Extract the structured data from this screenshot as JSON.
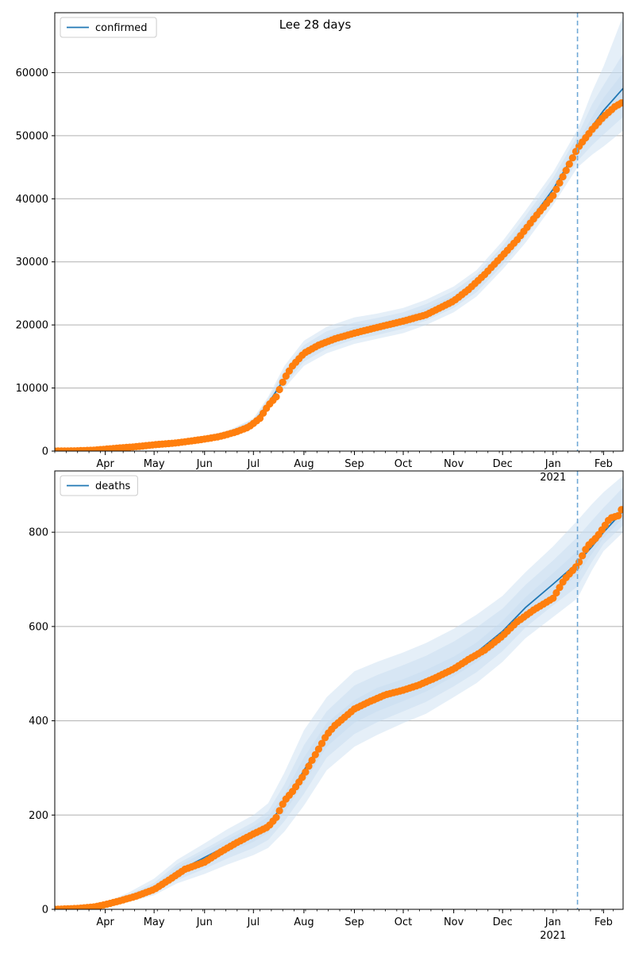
{
  "title": "Lee 28 days",
  "colors": {
    "model": "#1f77b4",
    "observed": "#ff7f0e",
    "band": "#c6dbef",
    "grid": "#b0b0b0",
    "cutoff": "#6fa8d6"
  },
  "chart_data": [
    {
      "type": "line",
      "legend": "confirmed",
      "legend_position": "top-left",
      "grid": "y",
      "ylim": [
        0,
        69500
      ],
      "yticks": [
        0,
        10000,
        20000,
        30000,
        40000,
        50000,
        60000
      ],
      "x_start": "2020-03-01",
      "x_end": "2021-02-13",
      "cutoff_date": "2021-01-16",
      "xticks": [
        {
          "date": "2020-04-01",
          "label": "Apr"
        },
        {
          "date": "2020-05-01",
          "label": "May"
        },
        {
          "date": "2020-06-01",
          "label": "Jun"
        },
        {
          "date": "2020-07-01",
          "label": "Jul"
        },
        {
          "date": "2020-08-01",
          "label": "Aug"
        },
        {
          "date": "2020-09-01",
          "label": "Sep"
        },
        {
          "date": "2020-10-01",
          "label": "Oct"
        },
        {
          "date": "2020-11-01",
          "label": "Nov"
        },
        {
          "date": "2020-12-01",
          "label": "Dec"
        },
        {
          "date": "2021-01-01",
          "label": "Jan",
          "sublabel": "2021"
        },
        {
          "date": "2021-02-01",
          "label": "Feb"
        }
      ],
      "model": {
        "dates": [
          "2020-03-01",
          "2020-03-20",
          "2020-04-01",
          "2020-04-15",
          "2020-05-01",
          "2020-05-15",
          "2020-06-01",
          "2020-06-15",
          "2020-07-01",
          "2020-07-10",
          "2020-07-20",
          "2020-08-01",
          "2020-08-15",
          "2020-09-01",
          "2020-09-15",
          "2020-10-01",
          "2020-10-15",
          "2020-11-01",
          "2020-11-15",
          "2020-12-01",
          "2020-12-15",
          "2021-01-01",
          "2021-01-16",
          "2021-01-25",
          "2021-02-01",
          "2021-02-13"
        ],
        "values": [
          0,
          60,
          200,
          600,
          1000,
          1400,
          2000,
          2700,
          4500,
          7500,
          11500,
          15500,
          17500,
          19000,
          19700,
          20600,
          22000,
          24000,
          26500,
          31000,
          35500,
          41500,
          48000,
          51500,
          54000,
          57500
        ],
        "bands": [
          {
            "lower": [
              0,
              40,
              150,
              450,
              800,
              1100,
              1600,
              2200,
              3800,
              6500,
              10000,
              13500,
              15500,
              17000,
              17800,
              18700,
              20000,
              22000,
              24500,
              28800,
              33000,
              39000,
              45000,
              47000,
              48300,
              50800
            ],
            "upper": [
              0,
              80,
              250,
              750,
              1200,
              1700,
              2400,
              3200,
              5200,
              8600,
              13500,
              17500,
              19700,
              21200,
              21800,
              22700,
              24000,
              26100,
              28700,
              33300,
              38100,
              44200,
              51000,
              57000,
              61000,
              69000
            ]
          },
          {
            "lower": [
              0,
              45,
              165,
              500,
              860,
              1200,
              1730,
              2360,
              4000,
              6850,
              10500,
              14200,
              16200,
              17700,
              18400,
              19400,
              20700,
              22700,
              25200,
              29500,
              33900,
              39900,
              46000,
              48500,
              50200,
              53000
            ],
            "upper": [
              0,
              75,
              235,
              700,
              1140,
              1600,
              2270,
              3040,
              5000,
              8250,
              12800,
              16800,
              19000,
              20400,
              21100,
              22000,
              23300,
              25400,
              28000,
              32500,
              37200,
              43300,
              50000,
              55000,
              58000,
              63000
            ]
          },
          {
            "lower": [
              0,
              50,
              180,
              550,
              920,
              1300,
              1860,
              2530,
              4250,
              7150,
              11000,
              14800,
              16800,
              18300,
              19000,
              20000,
              21300,
              23300,
              25800,
              30200,
              34700,
              40700,
              47000,
              50000,
              52000,
              55000
            ],
            "upper": [
              0,
              70,
              220,
              650,
              1080,
              1500,
              2140,
              2870,
              4750,
              7850,
              12000,
              16200,
              18200,
              19700,
              20400,
              21300,
              22700,
              24700,
              27200,
              31800,
              36300,
              42300,
              49000,
              53000,
              56000,
              60000
            ]
          }
        ]
      },
      "observed": {
        "dates": [
          "2020-03-01",
          "2020-03-15",
          "2020-03-25",
          "2020-04-01",
          "2020-04-10",
          "2020-04-20",
          "2020-05-01",
          "2020-05-15",
          "2020-06-01",
          "2020-06-10",
          "2020-06-20",
          "2020-06-28",
          "2020-07-05",
          "2020-07-10",
          "2020-07-15",
          "2020-07-20",
          "2020-07-25",
          "2020-08-01",
          "2020-08-10",
          "2020-08-20",
          "2020-09-01",
          "2020-09-15",
          "2020-10-01",
          "2020-10-15",
          "2020-11-01",
          "2020-11-10",
          "2020-11-20",
          "2020-12-01",
          "2020-12-10",
          "2020-12-20",
          "2021-01-01",
          "2021-01-08",
          "2021-01-16",
          "2021-01-25",
          "2021-02-01",
          "2021-02-08",
          "2021-02-12"
        ],
        "values": [
          0,
          50,
          150,
          300,
          500,
          700,
          1000,
          1300,
          1900,
          2300,
          3000,
          3800,
          5200,
          7200,
          8600,
          11500,
          13500,
          15500,
          16800,
          17800,
          18700,
          19600,
          20600,
          21600,
          23800,
          25600,
          28000,
          31000,
          33500,
          36800,
          40500,
          44000,
          48000,
          51000,
          53000,
          54600,
          55200
        ]
      }
    },
    {
      "type": "line",
      "legend": "deaths",
      "legend_position": "top-left",
      "grid": "y",
      "ylim": [
        0,
        930
      ],
      "yticks": [
        0,
        200,
        400,
        600,
        800
      ],
      "x_start": "2020-03-01",
      "x_end": "2021-02-13",
      "cutoff_date": "2021-01-16",
      "xticks": [
        {
          "date": "2020-04-01",
          "label": "Apr"
        },
        {
          "date": "2020-05-01",
          "label": "May"
        },
        {
          "date": "2020-06-01",
          "label": "Jun"
        },
        {
          "date": "2020-07-01",
          "label": "Jul"
        },
        {
          "date": "2020-08-01",
          "label": "Aug"
        },
        {
          "date": "2020-09-01",
          "label": "Sep"
        },
        {
          "date": "2020-10-01",
          "label": "Oct"
        },
        {
          "date": "2020-11-01",
          "label": "Nov"
        },
        {
          "date": "2020-12-01",
          "label": "Dec"
        },
        {
          "date": "2021-01-01",
          "label": "Jan",
          "sublabel": "2021"
        },
        {
          "date": "2021-02-01",
          "label": "Feb"
        }
      ],
      "model": {
        "dates": [
          "2020-03-01",
          "2020-03-20",
          "2020-04-01",
          "2020-04-15",
          "2020-05-01",
          "2020-05-15",
          "2020-06-01",
          "2020-06-15",
          "2020-07-01",
          "2020-07-10",
          "2020-07-20",
          "2020-08-01",
          "2020-08-15",
          "2020-09-01",
          "2020-09-15",
          "2020-10-01",
          "2020-10-15",
          "2020-11-01",
          "2020-11-15",
          "2020-12-01",
          "2020-12-15",
          "2021-01-01",
          "2021-01-16",
          "2021-01-25",
          "2021-02-01",
          "2021-02-13"
        ],
        "values": [
          0,
          2,
          10,
          25,
          45,
          80,
          110,
          135,
          160,
          180,
          225,
          295,
          370,
          420,
          445,
          465,
          485,
          515,
          545,
          590,
          640,
          690,
          735,
          770,
          800,
          845
        ],
        "bands": [
          {
            "lower": [
              0,
              1,
              6,
              15,
              30,
              55,
              75,
              95,
              115,
              130,
              165,
              220,
              295,
              345,
              370,
              395,
              415,
              450,
              480,
              525,
              575,
              620,
              660,
              720,
              760,
              800
            ],
            "upper": [
              0,
              4,
              15,
              35,
              65,
              105,
              140,
              170,
              200,
              225,
              290,
              380,
              450,
              505,
              525,
              545,
              565,
              595,
              625,
              665,
              715,
              770,
              825,
              860,
              885,
              920
            ]
          },
          {
            "lower": [
              0,
              1,
              7,
              18,
              35,
              62,
              86,
              108,
              130,
              147,
              187,
              245,
              322,
              372,
              397,
              420,
              440,
              473,
              503,
              548,
              598,
              645,
              685,
              738,
              775,
              815
            ],
            "upper": [
              0,
              3,
              13,
              31,
              56,
              96,
              128,
              155,
              185,
              208,
              265,
              348,
              420,
              475,
              497,
              518,
              538,
              568,
              598,
              638,
              688,
              740,
              790,
              825,
              852,
              895
            ]
          },
          {
            "lower": [
              0,
              1,
              8,
              21,
              39,
              70,
              97,
              120,
              143,
              162,
              205,
              268,
              345,
              396,
              420,
              442,
              462,
              494,
              524,
              568,
              618,
              667,
              710,
              755,
              788,
              830
            ],
            "upper": [
              0,
              3,
              12,
              29,
              51,
              90,
              122,
              148,
              176,
              197,
              245,
              322,
              395,
              444,
              470,
              488,
              508,
              536,
              566,
              612,
              662,
              713,
              760,
              785,
              812,
              860
            ]
          }
        ]
      },
      "observed": {
        "dates": [
          "2020-03-01",
          "2020-03-15",
          "2020-03-25",
          "2020-04-01",
          "2020-04-10",
          "2020-04-20",
          "2020-05-01",
          "2020-05-10",
          "2020-05-20",
          "2020-06-01",
          "2020-06-10",
          "2020-06-20",
          "2020-07-01",
          "2020-07-10",
          "2020-07-15",
          "2020-07-20",
          "2020-07-25",
          "2020-08-01",
          "2020-08-05",
          "2020-08-10",
          "2020-08-15",
          "2020-08-20",
          "2020-09-01",
          "2020-09-10",
          "2020-09-20",
          "2020-10-01",
          "2020-10-10",
          "2020-10-20",
          "2020-11-01",
          "2020-11-10",
          "2020-11-20",
          "2020-12-01",
          "2020-12-10",
          "2020-12-20",
          "2021-01-01",
          "2021-01-08",
          "2021-01-16",
          "2021-01-22",
          "2021-01-28",
          "2021-02-01",
          "2021-02-05",
          "2021-02-10",
          "2021-02-12"
        ],
        "values": [
          0,
          2,
          5,
          10,
          18,
          28,
          42,
          62,
          85,
          100,
          120,
          140,
          160,
          175,
          195,
          230,
          250,
          285,
          310,
          340,
          370,
          390,
          425,
          440,
          455,
          465,
          475,
          490,
          510,
          530,
          550,
          580,
          610,
          635,
          660,
          700,
          730,
          770,
          790,
          810,
          830,
          835,
          848
        ]
      }
    }
  ]
}
